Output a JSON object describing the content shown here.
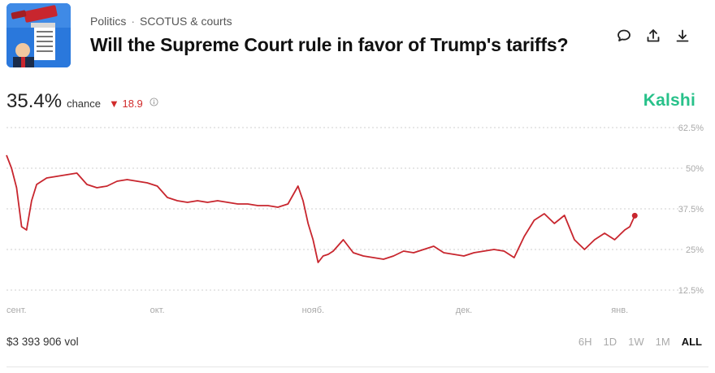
{
  "header": {
    "category": "Politics",
    "separator": "·",
    "subcategory": "SCOTUS & courts",
    "title": "Will the Supreme Court rule in favor of Trump's tariffs?"
  },
  "actions": [
    {
      "icon": "comment-icon"
    },
    {
      "icon": "share-icon"
    },
    {
      "icon": "download-icon"
    }
  ],
  "stat": {
    "percent": "35.4%",
    "chance_label": "chance",
    "delta_arrow": "▼",
    "delta": "18.9"
  },
  "brand": "Kalshi",
  "colors": {
    "line": "#c8262e",
    "brand": "#28c18a",
    "delta": "#d12b2b",
    "grid": "#cfcfcf"
  },
  "footer": {
    "volume": "$3 393 906 vol",
    "ranges": [
      "6H",
      "1D",
      "1W",
      "1M",
      "ALL"
    ],
    "active_range": "ALL"
  },
  "chart_data": {
    "type": "line",
    "title": "",
    "xlabel": "",
    "ylabel": "",
    "ylim": [
      12.5,
      62.5
    ],
    "yticks": [
      62.5,
      50,
      37.5,
      25,
      12.5
    ],
    "ytick_labels": [
      "62.5%",
      "50%",
      "37.5%",
      "25%",
      "12.5%"
    ],
    "xlim": [
      "2025-09-01",
      "2026-01-08"
    ],
    "xticks": [
      {
        "date": "2025-09-01",
        "label": "сент."
      },
      {
        "date": "2025-10-01",
        "label": "окт."
      },
      {
        "date": "2025-11-01",
        "label": "нояб."
      },
      {
        "date": "2025-12-01",
        "label": "дек."
      },
      {
        "date": "2026-01-01",
        "label": "янв."
      }
    ],
    "grid": true,
    "series": [
      {
        "x": [
          "2025-09-01",
          "2025-09-02",
          "2025-09-03",
          "2025-09-04",
          "2025-09-05",
          "2025-09-06",
          "2025-09-07",
          "2025-09-09",
          "2025-09-11",
          "2025-09-13",
          "2025-09-15",
          "2025-09-17",
          "2025-09-19",
          "2025-09-21",
          "2025-09-23",
          "2025-09-25",
          "2025-09-27",
          "2025-09-29",
          "2025-10-01",
          "2025-10-03",
          "2025-10-05",
          "2025-10-07",
          "2025-10-09",
          "2025-10-11",
          "2025-10-13",
          "2025-10-15",
          "2025-10-17",
          "2025-10-19",
          "2025-10-21",
          "2025-10-23",
          "2025-10-25",
          "2025-10-27",
          "2025-10-29",
          "2025-10-30",
          "2025-10-31",
          "2025-11-01",
          "2025-11-02",
          "2025-11-03",
          "2025-11-04",
          "2025-11-05",
          "2025-11-07",
          "2025-11-09",
          "2025-11-11",
          "2025-11-13",
          "2025-11-15",
          "2025-11-17",
          "2025-11-19",
          "2025-11-21",
          "2025-11-23",
          "2025-11-25",
          "2025-11-27",
          "2025-11-29",
          "2025-12-01",
          "2025-12-03",
          "2025-12-05",
          "2025-12-07",
          "2025-12-09",
          "2025-12-11",
          "2025-12-13",
          "2025-12-15",
          "2025-12-17",
          "2025-12-19",
          "2025-12-21",
          "2025-12-23",
          "2025-12-25",
          "2025-12-27",
          "2025-12-29",
          "2025-12-31",
          "2026-01-02",
          "2026-01-03",
          "2026-01-04"
        ],
        "y": [
          54,
          50,
          44,
          32,
          31,
          40,
          45,
          47,
          47.5,
          48,
          48.5,
          45,
          44,
          44.5,
          46,
          46.5,
          46,
          45.5,
          44.5,
          41,
          40,
          39.5,
          40,
          39.5,
          40,
          39.5,
          39,
          39,
          38.5,
          38.5,
          38,
          39,
          44.5,
          40,
          33,
          28,
          21,
          23,
          23.5,
          24.5,
          28,
          24,
          23,
          22.5,
          22,
          23,
          24.5,
          24,
          25,
          26,
          24,
          23.5,
          23,
          24,
          24.5,
          25,
          24.5,
          22.5,
          29,
          34,
          36,
          33,
          35.5,
          28,
          25,
          28,
          30,
          28,
          31,
          32,
          35.4
        ]
      }
    ]
  }
}
